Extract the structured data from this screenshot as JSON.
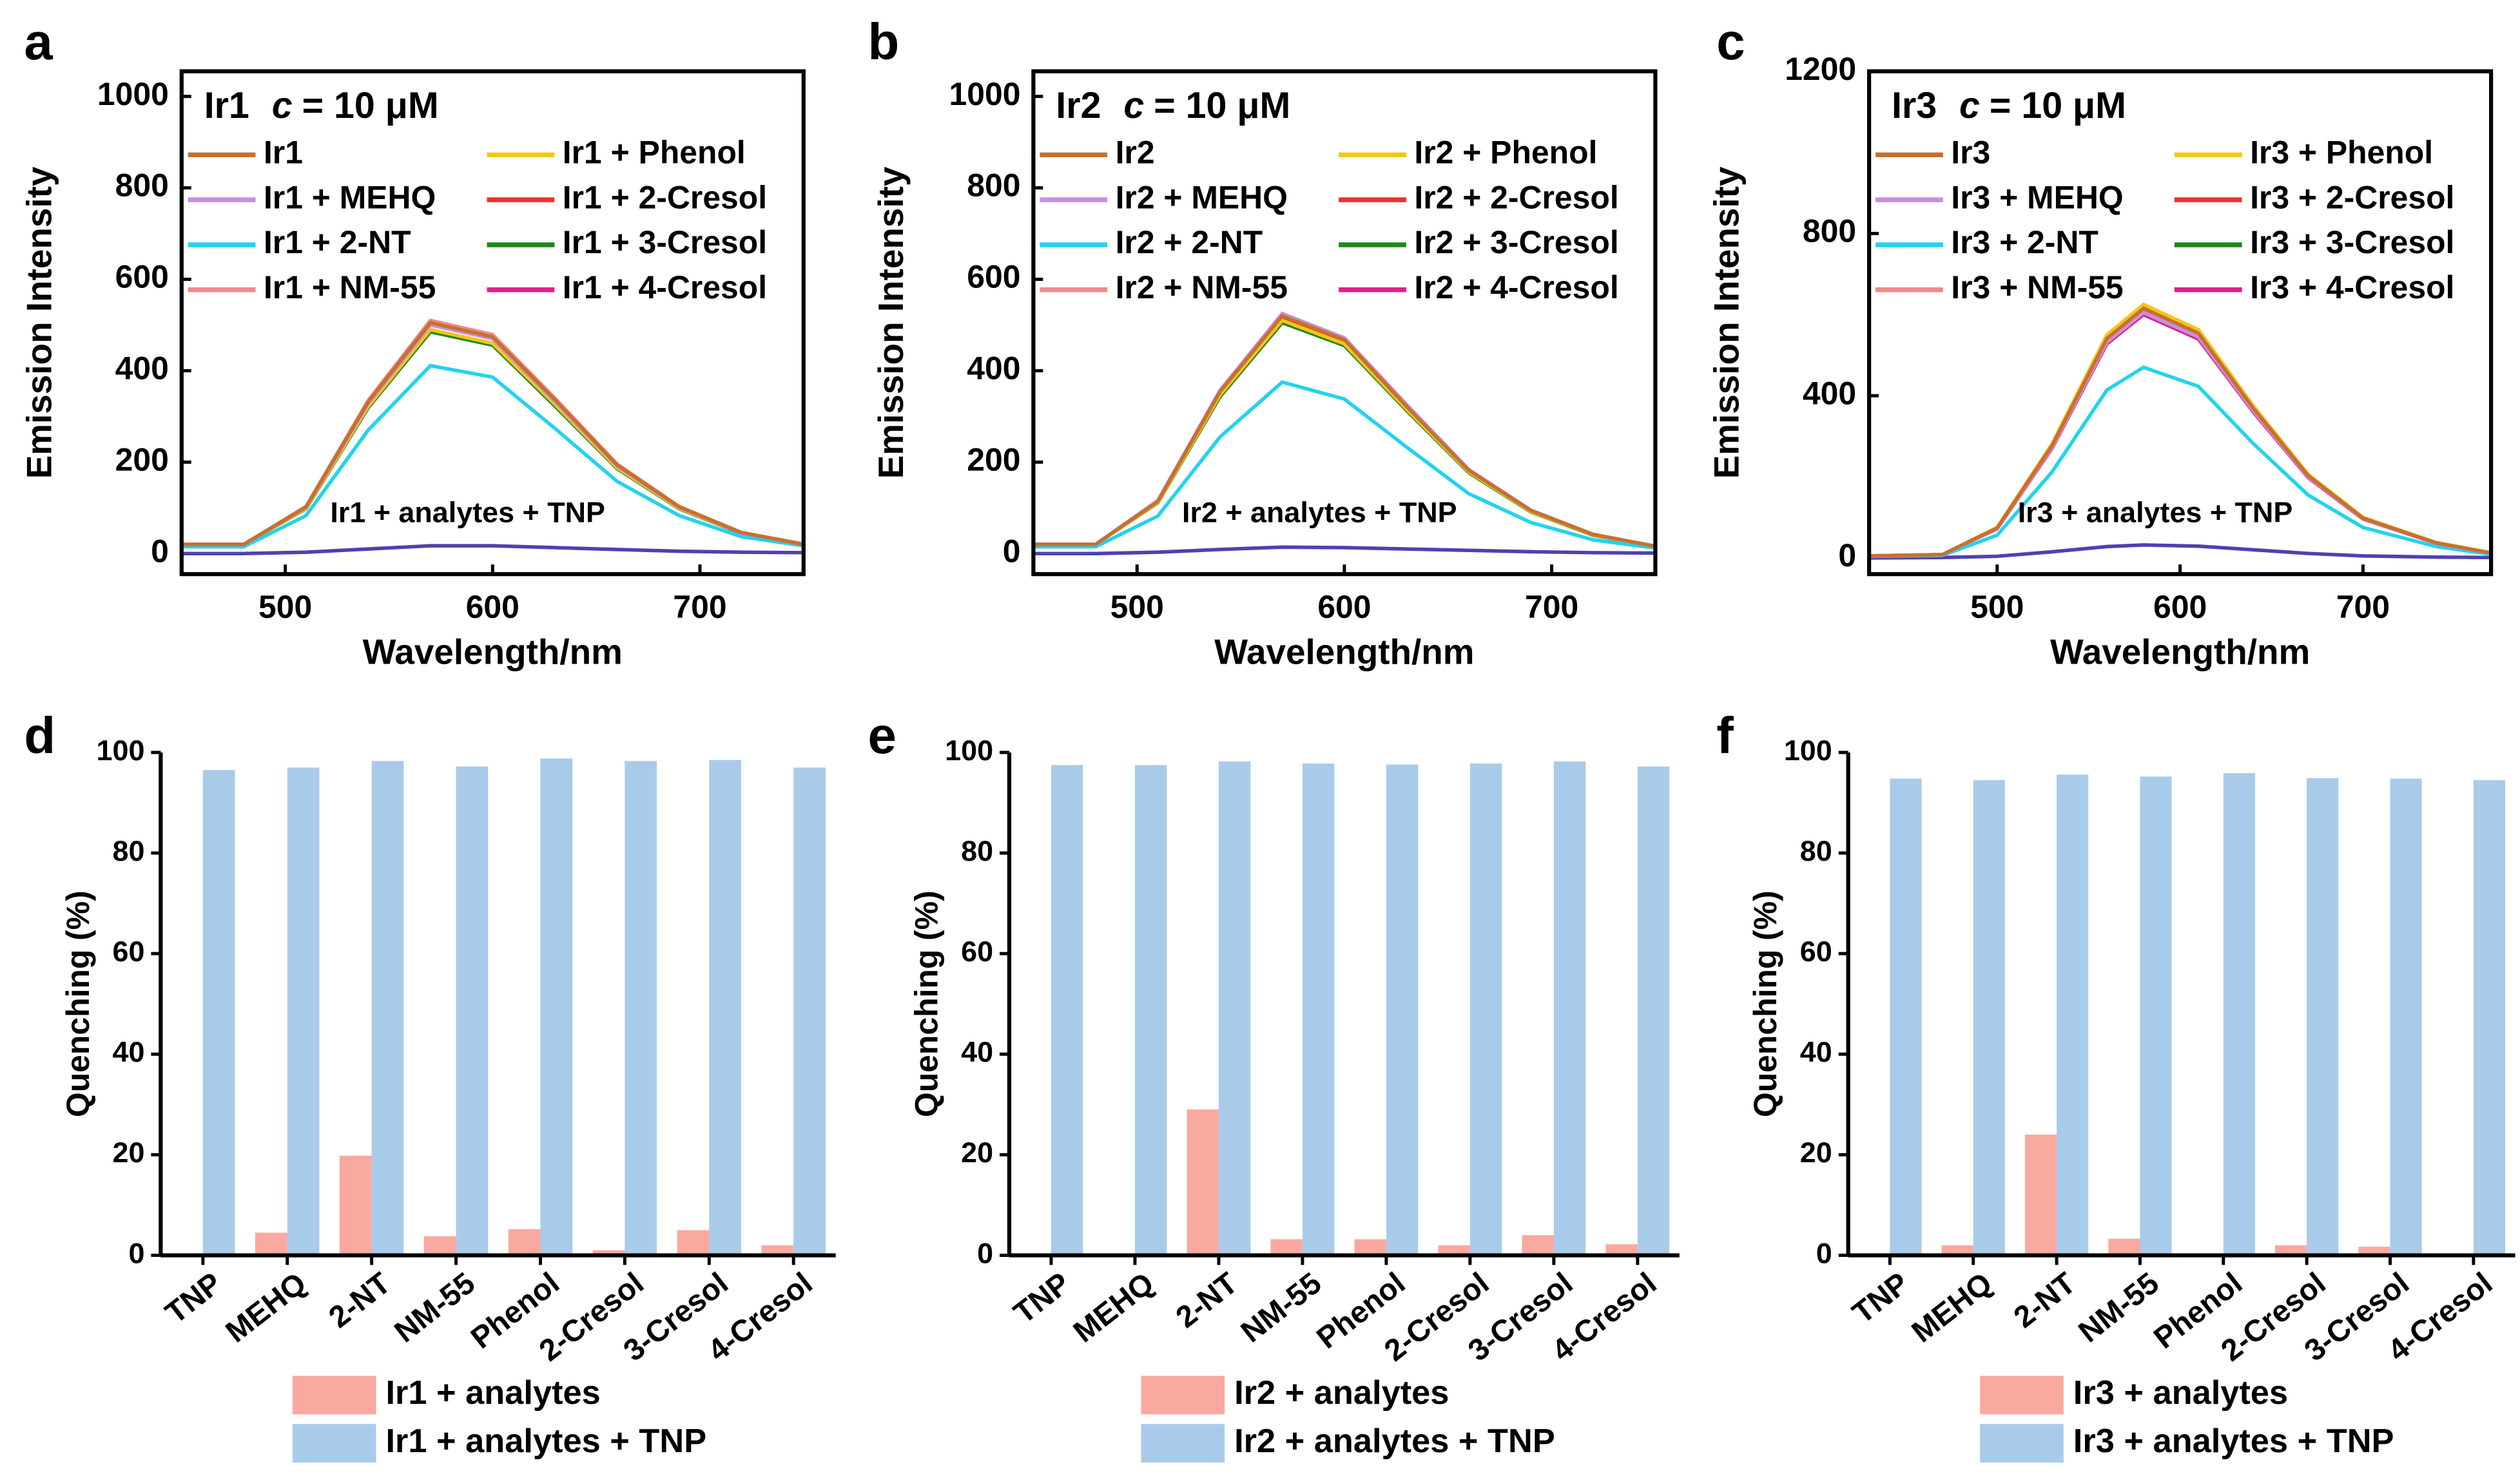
{
  "chart_data": [
    {
      "type": "line",
      "panel_label": "a",
      "title": "Ir1",
      "condition_symbol": "c",
      "condition_value": "= 10 μM",
      "x_label": "Wavelength/nm",
      "y_label": "Emission Intensity",
      "xlim": [
        450,
        750
      ],
      "ylim": [
        -45,
        1055
      ],
      "xticks": [
        500,
        600,
        700
      ],
      "yticks": [
        0,
        200,
        400,
        600,
        800,
        1000
      ],
      "x": [
        450,
        480,
        510,
        540,
        570,
        600,
        630,
        660,
        690,
        720,
        750
      ],
      "series": [
        {
          "name": "Ir1",
          "color": "#c8702e",
          "values": [
            20,
            20,
            102,
            332,
            505,
            474,
            337,
            194,
            102,
            46,
            20
          ]
        },
        {
          "name": "Ir1 + MEHQ",
          "color": "#c690e0",
          "values": [
            20,
            20,
            101,
            328,
            500,
            470,
            333,
            192,
            101,
            45,
            20
          ]
        },
        {
          "name": "Ir1 + 2-NT",
          "color": "#22d3ee",
          "values": [
            15,
            15,
            83,
            270,
            411,
            386,
            274,
            158,
            83,
            37,
            17
          ]
        },
        {
          "name": "Ir1 + NM-55",
          "color": "#f08a8a",
          "values": [
            20,
            20,
            103,
            335,
            510,
            479,
            340,
            196,
            103,
            46,
            21
          ]
        },
        {
          "name": "Ir1 + Phenol",
          "color": "#f5c518",
          "values": [
            20,
            20,
            99,
            322,
            490,
            460,
            327,
            188,
            99,
            45,
            20
          ]
        },
        {
          "name": "Ir1 + 2-Cresol",
          "color": "#e8332a",
          "values": [
            20,
            20,
            102,
            333,
            507,
            476,
            338,
            195,
            102,
            46,
            20
          ]
        },
        {
          "name": "Ir1 + 3-Cresol",
          "color": "#1a8a1a",
          "values": [
            20,
            20,
            98,
            319,
            485,
            456,
            323,
            186,
            98,
            44,
            20
          ]
        },
        {
          "name": "Ir1 + 4-Cresol",
          "color": "#e0208a",
          "values": [
            20,
            20,
            102,
            330,
            503,
            472,
            335,
            193,
            102,
            46,
            20
          ]
        },
        {
          "name": "Ir1 + analytes + TNP",
          "color": "#5040b0",
          "in_legend": false,
          "values": [
            0,
            0,
            3,
            10,
            17,
            17,
            13,
            9,
            5,
            3,
            2
          ]
        }
      ]
    },
    {
      "type": "line",
      "panel_label": "b",
      "title": "Ir2",
      "condition_symbol": "c",
      "condition_value": "= 10 μM",
      "x_label": "Wavelength/nm",
      "y_label": "Emission Intensity",
      "xlim": [
        450,
        750
      ],
      "ylim": [
        -45,
        1055
      ],
      "xticks": [
        500,
        600,
        700
      ],
      "yticks": [
        0,
        200,
        400,
        600,
        800,
        1000
      ],
      "x": [
        450,
        480,
        510,
        540,
        570,
        600,
        630,
        660,
        690,
        720,
        750
      ],
      "series": [
        {
          "name": "Ir2",
          "color": "#c8702e",
          "values": [
            20,
            20,
            114,
            354,
            520,
            468,
            322,
            182,
            94,
            42,
            16
          ]
        },
        {
          "name": "Ir2 + MEHQ",
          "color": "#c690e0",
          "values": [
            20,
            20,
            116,
            357,
            525,
            472,
            326,
            184,
            95,
            42,
            16
          ]
        },
        {
          "name": "Ir2 + 2-NT",
          "color": "#22d3ee",
          "values": [
            15,
            15,
            82,
            255,
            375,
            338,
            233,
            131,
            68,
            30,
            12
          ]
        },
        {
          "name": "Ir2 + NM-55",
          "color": "#f08a8a",
          "values": [
            20,
            20,
            115,
            355,
            522,
            470,
            324,
            183,
            94,
            42,
            16
          ]
        },
        {
          "name": "Ir2 + Phenol",
          "color": "#f5c518",
          "values": [
            20,
            20,
            112,
            347,
            510,
            459,
            316,
            179,
            92,
            41,
            15
          ]
        },
        {
          "name": "Ir2 + 2-Cresol",
          "color": "#e8332a",
          "values": [
            20,
            20,
            113,
            350,
            515,
            464,
            319,
            180,
            93,
            41,
            15
          ]
        },
        {
          "name": "Ir2 + 3-Cresol",
          "color": "#1a8a1a",
          "values": [
            20,
            20,
            111,
            343,
            505,
            455,
            313,
            177,
            91,
            40,
            15
          ]
        },
        {
          "name": "Ir2 + 4-Cresol",
          "color": "#e0208a",
          "values": [
            20,
            20,
            113,
            348,
            512,
            461,
            317,
            179,
            92,
            41,
            15
          ]
        },
        {
          "name": "Ir2 + analytes + TNP",
          "color": "#5040b0",
          "in_legend": false,
          "values": [
            0,
            0,
            3,
            9,
            14,
            13,
            10,
            7,
            4,
            2,
            1
          ]
        }
      ]
    },
    {
      "type": "line",
      "panel_label": "c",
      "title": "Ir3",
      "condition_symbol": "c",
      "condition_value": "= 10 μM",
      "x_label": "Wavelength/nm",
      "y_label": "Emission Intensity",
      "xlim": [
        430,
        770
      ],
      "ylim": [
        -40,
        1200
      ],
      "xticks": [
        500,
        600,
        700
      ],
      "yticks": [
        0,
        400,
        800,
        1200
      ],
      "x": [
        430,
        470,
        500,
        530,
        560,
        580,
        610,
        640,
        670,
        700,
        740,
        770
      ],
      "series": [
        {
          "name": "Ir3",
          "color": "#c8702e",
          "values": [
            5,
            8,
            74,
            277,
            541,
            615,
            554,
            369,
            203,
            98,
            37,
            12
          ]
        },
        {
          "name": "Ir3 + MEHQ",
          "color": "#c690e0",
          "values": [
            5,
            8,
            73,
            272,
            532,
            605,
            545,
            363,
            200,
            97,
            36,
            12
          ]
        },
        {
          "name": "Ir3 + 2-NT",
          "color": "#22d3ee",
          "values": [
            4,
            6,
            56,
            212,
            414,
            470,
            423,
            282,
            155,
            75,
            28,
            9
          ]
        },
        {
          "name": "Ir3 + NM-55",
          "color": "#f08a8a",
          "values": [
            5,
            8,
            73,
            275,
            537,
            610,
            549,
            366,
            201,
            98,
            37,
            12
          ]
        },
        {
          "name": "Ir3 + Phenol",
          "color": "#f5c518",
          "values": [
            5,
            8,
            75,
            281,
            550,
            625,
            563,
            375,
            206,
            100,
            38,
            13
          ]
        },
        {
          "name": "Ir3 + 2-Cresol",
          "color": "#e8332a",
          "values": [
            5,
            8,
            73,
            274,
            535,
            608,
            547,
            365,
            201,
            97,
            36,
            12
          ]
        },
        {
          "name": "Ir3 + 3-Cresol",
          "color": "#1a8a1a",
          "values": [
            5,
            8,
            74,
            279,
            546,
            620,
            558,
            372,
            205,
            99,
            37,
            12
          ]
        },
        {
          "name": "Ir3 + 4-Cresol",
          "color": "#e0208a",
          "values": [
            5,
            8,
            72,
            270,
            528,
            600,
            540,
            360,
            198,
            96,
            36,
            12
          ]
        },
        {
          "name": "Ir3 + analytes + TNP",
          "color": "#5040b0",
          "in_legend": false,
          "values": [
            0,
            1,
            4,
            15,
            28,
            32,
            29,
            20,
            11,
            5,
            2,
            1
          ]
        }
      ]
    },
    {
      "type": "bar",
      "panel_label": "d",
      "y_label": "Quenching (%)",
      "ylim": [
        0,
        100
      ],
      "yticks": [
        0,
        20,
        40,
        60,
        80,
        100
      ],
      "categories": [
        "TNP",
        "MEHQ",
        "2-NT",
        "NM-55",
        "Phenol",
        "2-Cresol",
        "3-Cresol",
        "4-Cresol"
      ],
      "series": [
        {
          "name": "Ir1 + analytes",
          "color": "#f9a99f",
          "values": [
            0,
            4.5,
            19.8,
            3.8,
            5.2,
            1,
            5,
            2
          ]
        },
        {
          "name": "Ir1 + analytes + TNP",
          "color": "#a9cbea",
          "values": [
            96.5,
            97,
            98.3,
            97.2,
            98.8,
            98.3,
            98.5,
            97
          ]
        }
      ]
    },
    {
      "type": "bar",
      "panel_label": "e",
      "y_label": "Quenching (%)",
      "ylim": [
        0,
        100
      ],
      "yticks": [
        0,
        20,
        40,
        60,
        80,
        100
      ],
      "categories": [
        "TNP",
        "MEHQ",
        "2-NT",
        "NM-55",
        "Phenol",
        "2-Cresol",
        "3-Cresol",
        "4-Cresol"
      ],
      "series": [
        {
          "name": "Ir2 + analytes",
          "color": "#f9a99f",
          "values": [
            0,
            0,
            29,
            3.2,
            3.2,
            2,
            4,
            2.2
          ]
        },
        {
          "name": "Ir2 + analytes + TNP",
          "color": "#a9cbea",
          "values": [
            97.5,
            97.5,
            98.2,
            97.8,
            97.6,
            97.8,
            98.2,
            97.2
          ]
        }
      ]
    },
    {
      "type": "bar",
      "panel_label": "f",
      "y_label": "Quenching (%)",
      "ylim": [
        0,
        100
      ],
      "yticks": [
        0,
        20,
        40,
        60,
        80,
        100
      ],
      "categories": [
        "TNP",
        "MEHQ",
        "2-NT",
        "NM-55",
        "Phenol",
        "2-Cresol",
        "3-Cresol",
        "4-Cresol"
      ],
      "series": [
        {
          "name": "Ir3 + analytes",
          "color": "#f9a99f",
          "values": [
            0,
            2,
            24,
            3.3,
            0,
            2,
            1.7,
            0
          ]
        },
        {
          "name": "Ir3 + analytes + TNP",
          "color": "#a9cbea",
          "values": [
            94.8,
            94.5,
            95.6,
            95.2,
            95.9,
            94.9,
            94.8,
            94.5
          ]
        }
      ]
    }
  ]
}
